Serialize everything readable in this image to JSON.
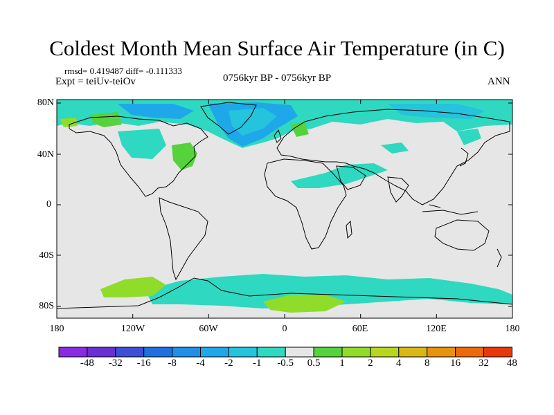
{
  "title": "Coldest Month Mean Surface Air Temperature (in C)",
  "stats": "rmsd= 0.419487 diff= -0.111333",
  "experiment": "Expt = teiUv-teiOv",
  "period": "0756kyr BP - 0756kyr BP",
  "season": "ANN",
  "axes": {
    "lon_ticks": [
      "180",
      "120W",
      "60W",
      "0",
      "60E",
      "120E",
      "180"
    ],
    "lat_ticks": [
      "80N",
      "40N",
      "0",
      "40S",
      "80S"
    ]
  },
  "colorbar": {
    "labels": [
      "-48",
      "-32",
      "-16",
      "-8",
      "-4",
      "-2",
      "-1",
      "-0.5",
      "0.5",
      "1",
      "2",
      "4",
      "8",
      "16",
      "32",
      "48"
    ],
    "colors": [
      "#8a2be2",
      "#6a2fd4",
      "#3c4fd6",
      "#1e6fe0",
      "#1f8fe8",
      "#1ea8ea",
      "#25c3dc",
      "#2fd8c0",
      "#e6e6e6",
      "#55d23c",
      "#8fdc2a",
      "#b8d61f",
      "#d9b815",
      "#e8920f",
      "#ec6a0c",
      "#e8380a"
    ]
  },
  "map_colors": {
    "ocean": "#e6e6e6",
    "cool_1": "#2fd8c0",
    "cool_2": "#25c3dc",
    "cool_3": "#1ea8ea",
    "warm_1": "#55d23c",
    "warm_2": "#8fdc2a"
  }
}
